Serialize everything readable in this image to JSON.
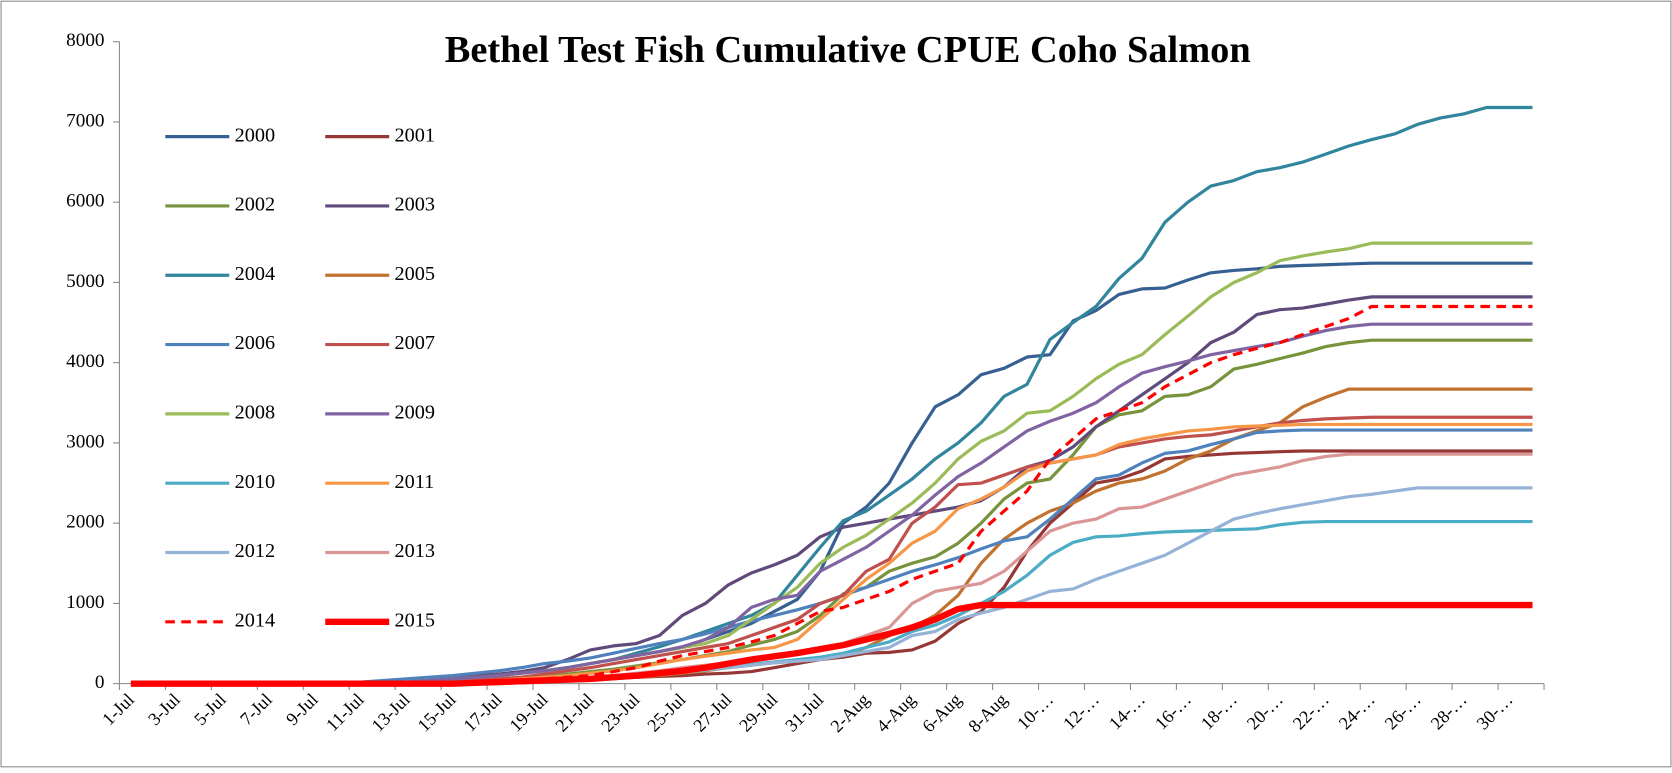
{
  "chart_data": {
    "type": "line",
    "title": "Bethel Test Fish Cumulative CPUE Coho Salmon",
    "categories": [
      "1-Jul",
      null,
      "3-Jul",
      null,
      "5-Jul",
      null,
      "7-Jul",
      null,
      "9-Jul",
      null,
      "11-Jul",
      null,
      "13-Jul",
      null,
      "15-Jul",
      null,
      "17-Jul",
      null,
      "19-Jul",
      null,
      "21-Jul",
      null,
      "23-Jul",
      null,
      "25-Jul",
      null,
      "27-Jul",
      null,
      "29-Jul",
      null,
      "31-Jul",
      null,
      "2-Aug",
      null,
      "4-Aug",
      null,
      "6-Aug",
      null,
      "8-Aug",
      null,
      "10-…",
      null,
      "12-…",
      null,
      "14-…",
      null,
      "16-…",
      null,
      "18-…",
      null,
      "20-…",
      null,
      "22-…",
      null,
      "24-…",
      null,
      "26-…",
      null,
      "28-…",
      null,
      "30-…",
      null
    ],
    "ylim": [
      0,
      8000
    ],
    "yticks": [
      0,
      1000,
      2000,
      3000,
      4000,
      5000,
      6000,
      7000,
      8000
    ],
    "grid": false,
    "legend": "upper left",
    "series": [
      {
        "name": "2000",
        "color": "#376092",
        "linestyle": "solid",
        "values": [
          0,
          0,
          0,
          0,
          0,
          0,
          0,
          0,
          0,
          0,
          0,
          0,
          0,
          30,
          60,
          80,
          100,
          130,
          160,
          200,
          250,
          300,
          350,
          400,
          450,
          550,
          650,
          750,
          900,
          1050,
          1400,
          2000,
          2200,
          2500,
          3000,
          3450,
          3600,
          3850,
          3930,
          4070,
          4100,
          4520,
          4650,
          4850,
          4920,
          4930,
          5030,
          5120,
          5150,
          5170,
          5200,
          5210,
          5220,
          5230,
          5240,
          5240,
          5240,
          5240,
          5240,
          5240,
          5240,
          5240
        ]
      },
      {
        "name": "2001",
        "color": "#953735",
        "linestyle": "solid",
        "values": [
          0,
          0,
          0,
          0,
          0,
          0,
          0,
          0,
          0,
          0,
          0,
          0,
          0,
          0,
          0,
          10,
          20,
          30,
          40,
          50,
          60,
          70,
          80,
          90,
          100,
          120,
          130,
          150,
          200,
          250,
          300,
          330,
          380,
          390,
          420,
          530,
          750,
          900,
          1200,
          1650,
          2000,
          2250,
          2500,
          2550,
          2650,
          2800,
          2830,
          2850,
          2870,
          2880,
          2890,
          2900,
          2900,
          2900,
          2900,
          2900,
          2900,
          2900,
          2900,
          2900,
          2900,
          2900
        ]
      },
      {
        "name": "2002",
        "color": "#77933c",
        "linestyle": "solid",
        "values": [
          0,
          0,
          0,
          0,
          0,
          0,
          0,
          0,
          0,
          0,
          0,
          0,
          0,
          20,
          30,
          50,
          60,
          80,
          100,
          120,
          150,
          180,
          220,
          260,
          300,
          350,
          400,
          480,
          550,
          650,
          850,
          1120,
          1200,
          1400,
          1500,
          1580,
          1750,
          2000,
          2300,
          2500,
          2550,
          2850,
          3200,
          3350,
          3400,
          3580,
          3600,
          3700,
          3920,
          3980,
          4050,
          4120,
          4200,
          4250,
          4280,
          4280,
          4280,
          4280,
          4280,
          4280,
          4280,
          4280
        ]
      },
      {
        "name": "2003",
        "color": "#604a7b",
        "linestyle": "solid",
        "values": [
          0,
          0,
          0,
          0,
          0,
          0,
          0,
          0,
          0,
          0,
          0,
          0,
          20,
          50,
          80,
          100,
          120,
          150,
          200,
          300,
          420,
          470,
          500,
          600,
          850,
          1000,
          1230,
          1380,
          1480,
          1600,
          1830,
          1950,
          2000,
          2050,
          2100,
          2150,
          2200,
          2280,
          2450,
          2700,
          2780,
          2950,
          3200,
          3400,
          3600,
          3800,
          4000,
          4250,
          4380,
          4600,
          4660,
          4680,
          4730,
          4780,
          4820,
          4820,
          4820,
          4820,
          4820,
          4820,
          4820,
          4820
        ]
      },
      {
        "name": "2004",
        "color": "#31859c",
        "linestyle": "solid",
        "values": [
          0,
          0,
          0,
          0,
          0,
          0,
          0,
          0,
          0,
          0,
          0,
          0,
          20,
          40,
          60,
          80,
          100,
          130,
          160,
          200,
          250,
          300,
          380,
          460,
          550,
          650,
          750,
          850,
          1000,
          1350,
          1700,
          2030,
          2150,
          2350,
          2550,
          2800,
          3000,
          3250,
          3580,
          3730,
          4290,
          4500,
          4700,
          5050,
          5300,
          5750,
          6000,
          6200,
          6270,
          6380,
          6430,
          6500,
          6600,
          6700,
          6780,
          6850,
          6970,
          7050,
          7100,
          7180,
          7180,
          7180
        ]
      },
      {
        "name": "2005",
        "color": "#c0722e",
        "linestyle": "solid",
        "values": [
          0,
          0,
          0,
          0,
          0,
          0,
          0,
          0,
          0,
          0,
          0,
          0,
          0,
          0,
          0,
          0,
          0,
          10,
          20,
          30,
          40,
          60,
          80,
          100,
          130,
          160,
          200,
          230,
          260,
          280,
          300,
          350,
          450,
          600,
          700,
          850,
          1100,
          1500,
          1800,
          2000,
          2150,
          2250,
          2400,
          2500,
          2550,
          2650,
          2800,
          2900,
          3050,
          3150,
          3250,
          3450,
          3570,
          3670,
          3670,
          3670,
          3670,
          3670,
          3670,
          3670,
          3670,
          3670
        ]
      },
      {
        "name": "2006",
        "color": "#4f81bd",
        "linestyle": "solid",
        "values": [
          0,
          0,
          0,
          0,
          0,
          0,
          0,
          0,
          0,
          0,
          20,
          40,
          60,
          80,
          100,
          130,
          160,
          200,
          250,
          280,
          320,
          380,
          440,
          500,
          550,
          620,
          700,
          780,
          850,
          920,
          1000,
          1100,
          1200,
          1300,
          1400,
          1480,
          1570,
          1680,
          1780,
          1830,
          2050,
          2300,
          2550,
          2600,
          2750,
          2870,
          2900,
          2980,
          3050,
          3130,
          3150,
          3160,
          3160,
          3160,
          3160,
          3160,
          3160,
          3160,
          3160,
          3160,
          3160,
          3160
        ]
      },
      {
        "name": "2007",
        "color": "#c0504d",
        "linestyle": "solid",
        "values": [
          0,
          0,
          0,
          0,
          0,
          0,
          0,
          0,
          0,
          0,
          0,
          0,
          0,
          0,
          20,
          40,
          60,
          80,
          120,
          160,
          200,
          250,
          300,
          350,
          400,
          450,
          500,
          600,
          700,
          800,
          1000,
          1100,
          1400,
          1550,
          2000,
          2200,
          2480,
          2500,
          2600,
          2700,
          2750,
          2800,
          2850,
          2950,
          3000,
          3050,
          3080,
          3100,
          3150,
          3200,
          3250,
          3280,
          3300,
          3310,
          3320,
          3320,
          3320,
          3320,
          3320,
          3320,
          3320,
          3320
        ]
      },
      {
        "name": "2008",
        "color": "#9bbb59",
        "linestyle": "solid",
        "values": [
          0,
          0,
          0,
          0,
          0,
          0,
          0,
          0,
          0,
          0,
          0,
          0,
          20,
          40,
          60,
          80,
          100,
          130,
          160,
          200,
          250,
          300,
          350,
          400,
          450,
          500,
          600,
          800,
          1000,
          1200,
          1500,
          1700,
          1850,
          2050,
          2250,
          2500,
          2800,
          3020,
          3150,
          3370,
          3400,
          3580,
          3800,
          3980,
          4100,
          4350,
          4580,
          4820,
          5000,
          5120,
          5270,
          5330,
          5380,
          5420,
          5490,
          5490,
          5490,
          5490,
          5490,
          5490,
          5490,
          5490
        ]
      },
      {
        "name": "2009",
        "color": "#8064a2",
        "linestyle": "solid",
        "values": [
          0,
          0,
          0,
          0,
          0,
          0,
          0,
          0,
          0,
          0,
          0,
          0,
          20,
          40,
          60,
          80,
          100,
          130,
          160,
          200,
          250,
          300,
          350,
          400,
          460,
          550,
          700,
          950,
          1050,
          1100,
          1400,
          1550,
          1700,
          1900,
          2100,
          2350,
          2580,
          2750,
          2950,
          3150,
          3270,
          3370,
          3500,
          3700,
          3870,
          3950,
          4020,
          4100,
          4150,
          4200,
          4250,
          4330,
          4400,
          4450,
          4480,
          4480,
          4480,
          4480,
          4480,
          4480,
          4480,
          4480
        ]
      },
      {
        "name": "2010",
        "color": "#4bacc6",
        "linestyle": "solid",
        "values": [
          0,
          0,
          0,
          0,
          0,
          0,
          0,
          0,
          0,
          0,
          0,
          0,
          0,
          0,
          0,
          0,
          10,
          20,
          30,
          50,
          70,
          90,
          110,
          130,
          150,
          180,
          210,
          240,
          270,
          300,
          330,
          380,
          450,
          520,
          650,
          730,
          850,
          1000,
          1150,
          1350,
          1600,
          1760,
          1830,
          1840,
          1870,
          1890,
          1900,
          1910,
          1920,
          1930,
          1980,
          2010,
          2020,
          2020,
          2020,
          2020,
          2020,
          2020,
          2020,
          2020,
          2020,
          2020
        ]
      },
      {
        "name": "2011",
        "color": "#f79646",
        "linestyle": "solid",
        "values": [
          0,
          0,
          0,
          0,
          0,
          0,
          0,
          0,
          0,
          0,
          0,
          0,
          0,
          0,
          10,
          20,
          40,
          60,
          80,
          100,
          130,
          160,
          200,
          250,
          300,
          340,
          380,
          420,
          450,
          550,
          800,
          1050,
          1300,
          1500,
          1750,
          1900,
          2180,
          2300,
          2450,
          2650,
          2750,
          2800,
          2850,
          2980,
          3050,
          3100,
          3150,
          3170,
          3200,
          3210,
          3220,
          3230,
          3230,
          3230,
          3230,
          3230,
          3230,
          3230,
          3230,
          3230,
          3230,
          3230
        ]
      },
      {
        "name": "2012",
        "color": "#95b3d7",
        "linestyle": "solid",
        "values": [
          0,
          0,
          0,
          0,
          0,
          0,
          0,
          0,
          0,
          0,
          0,
          0,
          0,
          0,
          0,
          0,
          10,
          20,
          30,
          40,
          50,
          70,
          90,
          110,
          140,
          170,
          200,
          230,
          260,
          280,
          300,
          350,
          400,
          450,
          600,
          650,
          800,
          880,
          950,
          1050,
          1150,
          1180,
          1300,
          1400,
          1500,
          1600,
          1750,
          1900,
          2050,
          2120,
          2180,
          2230,
          2280,
          2330,
          2360,
          2400,
          2440,
          2440,
          2440,
          2440,
          2440,
          2440
        ]
      },
      {
        "name": "2013",
        "color": "#d99694",
        "linestyle": "solid",
        "values": [
          0,
          0,
          0,
          0,
          0,
          0,
          0,
          0,
          0,
          0,
          0,
          0,
          0,
          0,
          0,
          10,
          20,
          30,
          40,
          60,
          80,
          100,
          130,
          160,
          200,
          230,
          260,
          300,
          340,
          400,
          450,
          500,
          600,
          700,
          1000,
          1150,
          1200,
          1250,
          1400,
          1650,
          1900,
          2000,
          2050,
          2180,
          2200,
          2300,
          2400,
          2500,
          2600,
          2650,
          2700,
          2780,
          2830,
          2860,
          2860,
          2860,
          2860,
          2860,
          2860,
          2860,
          2860,
          2860
        ]
      },
      {
        "name": "2014",
        "color": "#ff0000",
        "linestyle": "dashed",
        "values": [
          0,
          0,
          0,
          0,
          0,
          0,
          0,
          0,
          0,
          0,
          0,
          0,
          0,
          0,
          10,
          20,
          30,
          40,
          60,
          80,
          100,
          150,
          200,
          280,
          350,
          400,
          450,
          520,
          600,
          750,
          900,
          950,
          1050,
          1150,
          1300,
          1400,
          1500,
          1900,
          2150,
          2400,
          2800,
          3050,
          3300,
          3400,
          3500,
          3700,
          3850,
          4000,
          4100,
          4180,
          4250,
          4350,
          4450,
          4550,
          4700,
          4700,
          4700,
          4700,
          4700,
          4700,
          4700,
          4700
        ]
      },
      {
        "name": "2015",
        "color": "#ff0000",
        "linestyle": "bold",
        "values": [
          0,
          0,
          0,
          0,
          0,
          0,
          0,
          0,
          0,
          0,
          0,
          0,
          0,
          0,
          0,
          10,
          20,
          30,
          40,
          50,
          60,
          80,
          100,
          130,
          160,
          200,
          250,
          300,
          340,
          380,
          430,
          480,
          550,
          620,
          700,
          800,
          930,
          980,
          980,
          980,
          980,
          980,
          980,
          980,
          980,
          980,
          980,
          980,
          980,
          980,
          980,
          980,
          980,
          980,
          980,
          980,
          980,
          980,
          980,
          980,
          980,
          980
        ]
      }
    ]
  }
}
